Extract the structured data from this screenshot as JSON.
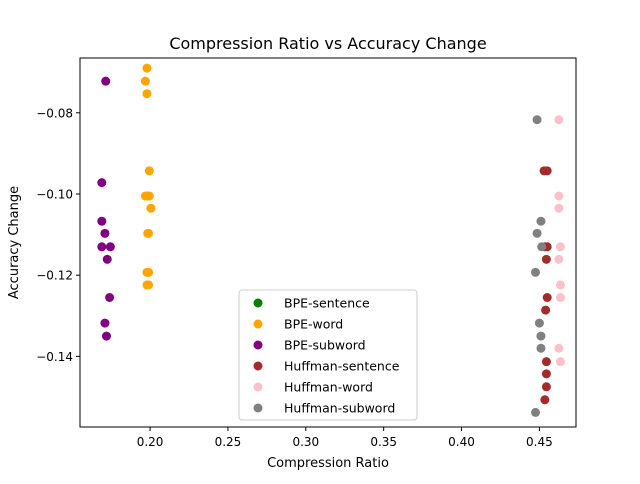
{
  "chart_data": {
    "type": "scatter",
    "title": "Compression Ratio vs Accuracy Change",
    "xlabel": "Compression Ratio",
    "ylabel": "Accuracy Change",
    "xlim": [
      0.155,
      0.4735
    ],
    "ylim": [
      -0.1574,
      -0.0665
    ],
    "xticks": [
      0.2,
      0.25,
      0.3,
      0.35,
      0.4,
      0.45
    ],
    "xtick_labels": [
      "0.20",
      "0.25",
      "0.30",
      "0.35",
      "0.40",
      "0.45"
    ],
    "yticks": [
      -0.08,
      -0.1,
      -0.12,
      -0.14
    ],
    "ytick_labels": [
      "−0.08",
      "−0.10",
      "−0.12",
      "−0.14"
    ],
    "grid": false,
    "legend_position": "lower-center",
    "series": [
      {
        "name": "BPE-sentence",
        "color": "#008000",
        "points": []
      },
      {
        "name": "BPE-word",
        "color": "#ffa500",
        "points": [
          [
            0.198,
            -0.069
          ],
          [
            0.197,
            -0.0722
          ],
          [
            0.198,
            -0.0753
          ],
          [
            0.1995,
            -0.0943
          ],
          [
            0.197,
            -0.1005
          ],
          [
            0.198,
            -0.1005
          ],
          [
            0.1995,
            -0.1005
          ],
          [
            0.2005,
            -0.1035
          ],
          [
            0.1985,
            -0.1097
          ],
          [
            0.199,
            -0.1097
          ],
          [
            0.198,
            -0.1193
          ],
          [
            0.199,
            -0.1193
          ],
          [
            0.198,
            -0.1224
          ],
          [
            0.199,
            -0.1224
          ]
        ]
      },
      {
        "name": "BPE-subword",
        "color": "#800080",
        "points": [
          [
            0.1715,
            -0.0722
          ],
          [
            0.169,
            -0.0972
          ],
          [
            0.169,
            -0.1067
          ],
          [
            0.171,
            -0.1097
          ],
          [
            0.169,
            -0.113
          ],
          [
            0.1745,
            -0.113
          ],
          [
            0.1725,
            -0.1161
          ],
          [
            0.174,
            -0.1255
          ],
          [
            0.171,
            -0.1318
          ],
          [
            0.172,
            -0.135
          ]
        ]
      },
      {
        "name": "Huffman-sentence",
        "color": "#a52a2a",
        "points": [
          [
            0.453,
            -0.0943
          ],
          [
            0.455,
            -0.0943
          ],
          [
            0.4535,
            -0.113
          ],
          [
            0.455,
            -0.113
          ],
          [
            0.4545,
            -0.1161
          ],
          [
            0.455,
            -0.1255
          ],
          [
            0.454,
            -0.1286
          ],
          [
            0.4545,
            -0.1413
          ],
          [
            0.4545,
            -0.1443
          ],
          [
            0.4545,
            -0.1475
          ],
          [
            0.4535,
            -0.1507
          ]
        ]
      },
      {
        "name": "Huffman-word",
        "color": "#ffc0cb",
        "points": [
          [
            0.4625,
            -0.0817
          ],
          [
            0.4625,
            -0.1005
          ],
          [
            0.4625,
            -0.1035
          ],
          [
            0.4635,
            -0.113
          ],
          [
            0.4625,
            -0.1161
          ],
          [
            0.4635,
            -0.1224
          ],
          [
            0.4635,
            -0.1255
          ],
          [
            0.4625,
            -0.138
          ],
          [
            0.4635,
            -0.1413
          ]
        ]
      },
      {
        "name": "Huffman-subword",
        "color": "#808080",
        "points": [
          [
            0.4485,
            -0.0817
          ],
          [
            0.451,
            -0.1067
          ],
          [
            0.4485,
            -0.1097
          ],
          [
            0.4515,
            -0.113
          ],
          [
            0.4475,
            -0.1193
          ],
          [
            0.45,
            -0.1318
          ],
          [
            0.451,
            -0.135
          ],
          [
            0.451,
            -0.138
          ],
          [
            0.4475,
            -0.1538
          ]
        ]
      }
    ]
  }
}
